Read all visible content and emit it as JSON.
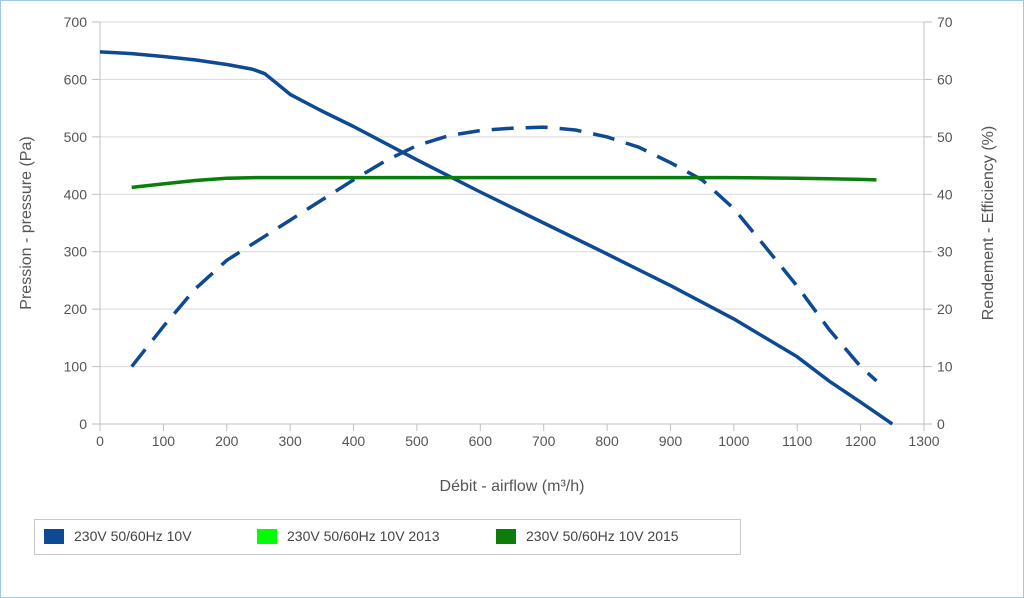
{
  "chart_data": {
    "type": "line",
    "xlabel": "Débit - airflow (m³/h)",
    "ylabel": "Pression - pressure (Pa)",
    "y2label": "Rendement - Efficiency (%)",
    "xlim": [
      0,
      1300
    ],
    "ylim": [
      0,
      700
    ],
    "y2lim": [
      0,
      70
    ],
    "x_ticks": [
      0,
      100,
      200,
      300,
      400,
      500,
      600,
      700,
      800,
      900,
      1000,
      1100,
      1200,
      1300
    ],
    "y_ticks": [
      0,
      100,
      200,
      300,
      400,
      500,
      600,
      700
    ],
    "y2_ticks": [
      0,
      10,
      20,
      30,
      40,
      50,
      60,
      70
    ],
    "grid": "horizontal",
    "legend_position": "bottom-left",
    "series": [
      {
        "axis": "left",
        "style": "solid",
        "color": "#0d4a93",
        "x": [
          0,
          50,
          100,
          150,
          200,
          240,
          260,
          280,
          300,
          350,
          400,
          450,
          500,
          550,
          600,
          700,
          800,
          900,
          1000,
          1100,
          1150,
          1200,
          1250
        ],
        "y": [
          648,
          645,
          640,
          634,
          626,
          618,
          610,
          592,
          574,
          545,
          518,
          489,
          460,
          432,
          404,
          350,
          296,
          241,
          183,
          117,
          75,
          38,
          0
        ]
      },
      {
        "axis": "right",
        "style": "dashed",
        "color": "#0d4a93",
        "x": [
          50,
          100,
          150,
          200,
          250,
          300,
          350,
          400,
          450,
          500,
          550,
          600,
          650,
          700,
          750,
          800,
          850,
          900,
          950,
          1000,
          1050,
          1100,
          1150,
          1200,
          1225
        ],
        "y": [
          10,
          17,
          23.5,
          28.5,
          32,
          35.5,
          39,
          42.5,
          45.8,
          48.5,
          50.2,
          51.1,
          51.5,
          51.7,
          51.2,
          50,
          48.2,
          45.5,
          42.5,
          37.5,
          30.8,
          24,
          16.5,
          10,
          7.5
        ]
      },
      {
        "axis": "right",
        "style": "solid",
        "color": "#0b7d0b",
        "x": [
          50,
          100,
          150,
          200,
          250,
          300,
          400,
          500,
          600,
          700,
          800,
          900,
          1000,
          1100,
          1150,
          1200,
          1225
        ],
        "y": [
          41.2,
          41.8,
          42.4,
          42.8,
          42.9,
          42.9,
          42.9,
          42.9,
          42.9,
          42.9,
          42.9,
          42.9,
          42.9,
          42.8,
          42.7,
          42.6,
          42.5
        ]
      }
    ],
    "legend": [
      {
        "label": "230V 50/60Hz 10V",
        "color": "#0d4a93"
      },
      {
        "label": "230V 50/60Hz 10V 2013",
        "color": "#00ff00"
      },
      {
        "label": "230V 50/60Hz 10V 2015",
        "color": "#0b7d0b"
      }
    ]
  }
}
